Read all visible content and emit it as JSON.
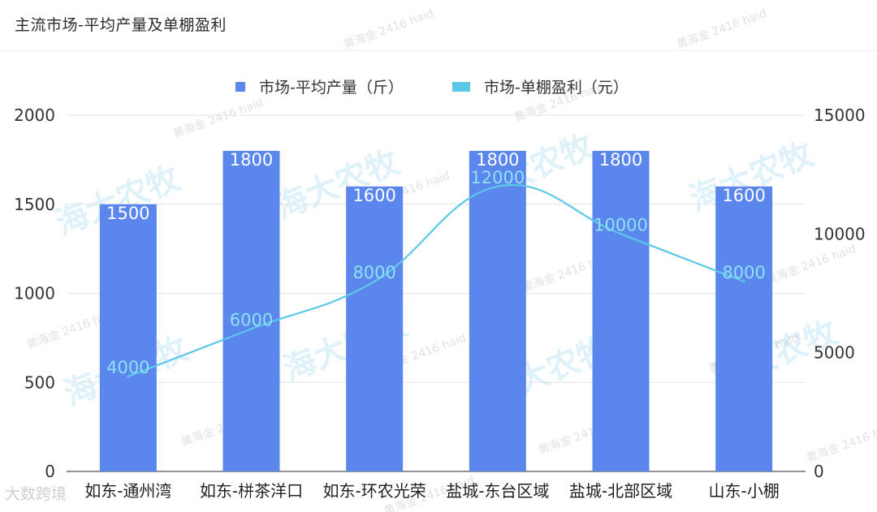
{
  "title": "主流市场-平均产量及单棚盈利",
  "corner_watermark": "大数跨境",
  "chart_data": {
    "type": "bar",
    "title": "主流市场-平均产量及单棚盈利",
    "categories": [
      "如东-通州湾",
      "如东-栟茶洋口",
      "如东-环农光荣",
      "盐城-东台区域",
      "盐城-北部区域",
      "山东-小棚"
    ],
    "series": [
      {
        "name": "市场-平均产量（斤）",
        "type": "bar",
        "axis": "left",
        "values": [
          1500,
          1800,
          1600,
          1800,
          1800,
          1600
        ],
        "color": "#5b86ec"
      },
      {
        "name": "市场-单棚盈利（元）",
        "type": "line",
        "axis": "right",
        "values": [
          4000,
          6000,
          8000,
          12000,
          10000,
          8000
        ],
        "color": "#5bc8e8"
      }
    ],
    "y_left": {
      "min": 0,
      "max": 2000,
      "ticks": [
        0,
        500,
        1000,
        1500,
        2000
      ]
    },
    "y_right": {
      "min": 0,
      "max": 15000,
      "ticks": [
        0,
        5000,
        10000,
        15000
      ]
    },
    "grid": true,
    "legend_position": "top-center"
  },
  "watermarks": {
    "big": "海大农牧",
    "small": "黄海金 2416 haid"
  }
}
